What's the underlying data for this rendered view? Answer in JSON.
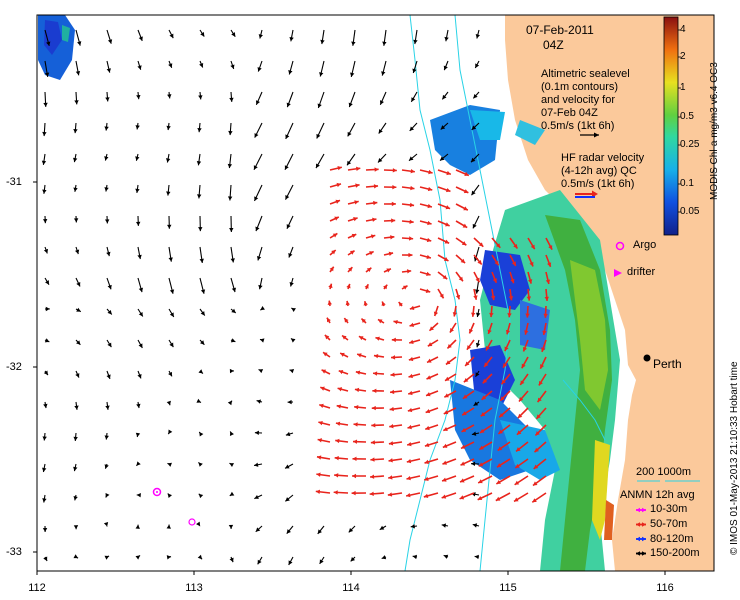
{
  "title": {
    "date": "07-Feb-2011",
    "time": "04Z"
  },
  "altimetry_legend": {
    "lines": [
      "Altimetric sealevel",
      "(0.1m contours)",
      "and velocity for",
      "07-Feb 04Z",
      "0.5m/s (1kt 6h)"
    ]
  },
  "hf_radar_legend": {
    "lines": [
      "HF radar velocity",
      "(4-12h avg) QC",
      "0.5m/s (1kt 6h)"
    ],
    "arrow_color": "#e8241c"
  },
  "markers": {
    "argo_label": "Argo",
    "drifter_label": "drifter",
    "city_label": "Perth"
  },
  "colorbar": {
    "title": "MODIS Chl-a mg/m3 v6.4 OC3",
    "labels": [
      "4",
      "2",
      "1",
      "0.5",
      "0.25",
      "0.1",
      "0.05"
    ]
  },
  "depth_legend": {
    "label": "200  1000m"
  },
  "anmn_legend": {
    "title": "ANMN 12h avg",
    "items": [
      {
        "label": "10-30m",
        "color": "#ff00ff"
      },
      {
        "label": "50-70m",
        "color": "#e8241c"
      },
      {
        "label": "80-120m",
        "color": "#1030ff"
      },
      {
        "label": "150-200m",
        "color": "#000000"
      }
    ]
  },
  "credit": "© IMOS 01-May-2013 21:10:33 Hobart time",
  "axes": {
    "x_ticks": [
      "112",
      "113",
      "114",
      "115",
      "116"
    ],
    "y_ticks": [
      "-31",
      "-32",
      "-33"
    ]
  },
  "colors": {
    "land": "#fbc99b",
    "current_arrow": "#000000",
    "radar_arrow": "#e8241c",
    "contour": "#29d3e6"
  }
}
